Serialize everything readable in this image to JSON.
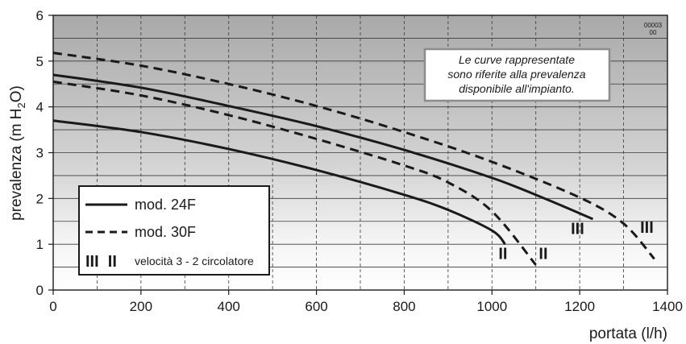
{
  "chart_data": {
    "type": "line",
    "code": [
      "00003",
      "00"
    ],
    "xlabel": "portata (l/h)",
    "ylabel_main": "prevalenza (m H",
    "ylabel_sub": "2",
    "ylabel_end": "O)",
    "xlim": [
      0,
      1400
    ],
    "ylim": [
      0,
      6
    ],
    "xticks": [
      0,
      200,
      400,
      600,
      800,
      1000,
      1200,
      1400
    ],
    "yticks": [
      0,
      1,
      2,
      3,
      4,
      5,
      6
    ],
    "grid": true,
    "note": [
      "Le curve rappresentate",
      "sono riferite alla prevalenza",
      "disponibile all'impianto."
    ],
    "legend": {
      "position": "bottom-left",
      "entries": [
        {
          "label": "mod. 24F",
          "style": "solid"
        },
        {
          "label": "mod. 30F",
          "style": "dashed"
        }
      ],
      "speed_note": {
        "symbols": "III  II",
        "label": "velocità 3 - 2 circolatore"
      }
    },
    "series": [
      {
        "model": "24F",
        "speed": "III",
        "style": "solid",
        "x": [
          0,
          200,
          400,
          600,
          800,
          1000,
          1120,
          1230
        ],
        "y": [
          4.7,
          4.42,
          4.02,
          3.58,
          3.06,
          2.45,
          2.0,
          1.55
        ]
      },
      {
        "model": "24F",
        "speed": "II",
        "style": "solid",
        "x": [
          0,
          200,
          400,
          600,
          800,
          900,
          1000,
          1030
        ],
        "y": [
          3.7,
          3.45,
          3.08,
          2.62,
          2.08,
          1.75,
          1.3,
          1.0
        ]
      },
      {
        "model": "30F",
        "speed": "III",
        "style": "dashed",
        "x": [
          0,
          200,
          400,
          600,
          800,
          1000,
          1200,
          1300,
          1370
        ],
        "y": [
          5.18,
          4.9,
          4.5,
          4.02,
          3.45,
          2.8,
          2.02,
          1.45,
          0.68
        ]
      },
      {
        "model": "30F",
        "speed": "II",
        "style": "dashed",
        "x": [
          0,
          200,
          400,
          600,
          800,
          900,
          1000,
          1100
        ],
        "y": [
          4.55,
          4.25,
          3.82,
          3.3,
          2.72,
          2.35,
          1.72,
          0.55
        ]
      }
    ],
    "curve_labels": [
      {
        "text": "II",
        "x": 1025,
        "y": 0.68
      },
      {
        "text": "II",
        "x": 1117,
        "y": 0.68
      },
      {
        "text": "III",
        "x": 1195,
        "y": 1.22
      },
      {
        "text": "III",
        "x": 1353,
        "y": 1.25
      }
    ]
  }
}
